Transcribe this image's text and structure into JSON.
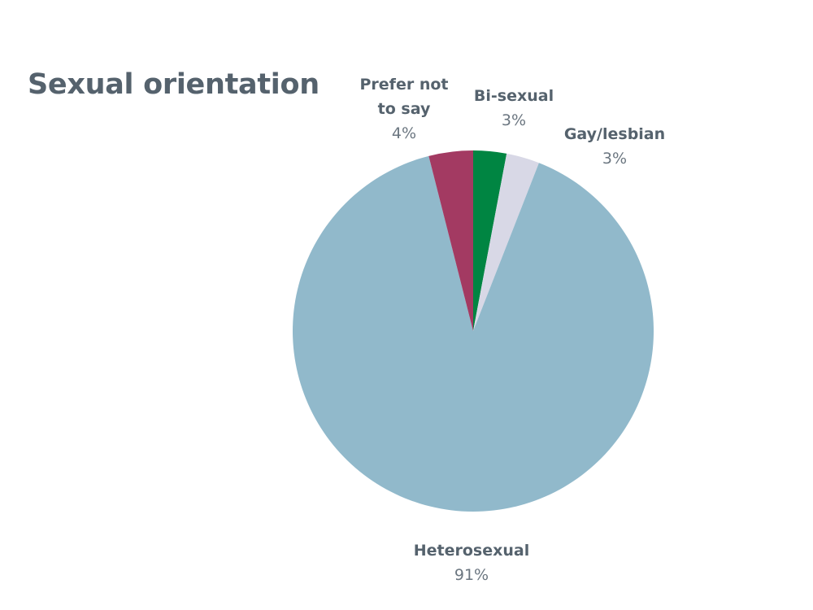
{
  "chart_data": {
    "type": "pie",
    "title": "Sexual orientation",
    "slices": [
      {
        "label_lines": [
          "Bi-sexual"
        ],
        "label": "Bi-sexual",
        "value": 3,
        "value_label": "3%",
        "color": "#008542"
      },
      {
        "label_lines": [
          "Gay/lesbian"
        ],
        "label": "Gay/lesbian",
        "value": 3,
        "value_label": "3%",
        "color": "#d8d8e6"
      },
      {
        "label_lines": [
          "Heterosexual"
        ],
        "label": "Heterosexual",
        "value": 91,
        "value_label": "91%",
        "color": "#91b9cb"
      },
      {
        "label_lines": [
          "Prefer not",
          "to say"
        ],
        "label": "Prefer not to say",
        "value": 4,
        "value_label": "4%",
        "color": "#a33a62"
      }
    ],
    "start_angle_deg": 0,
    "direction": "clockwise",
    "legend": "none"
  }
}
